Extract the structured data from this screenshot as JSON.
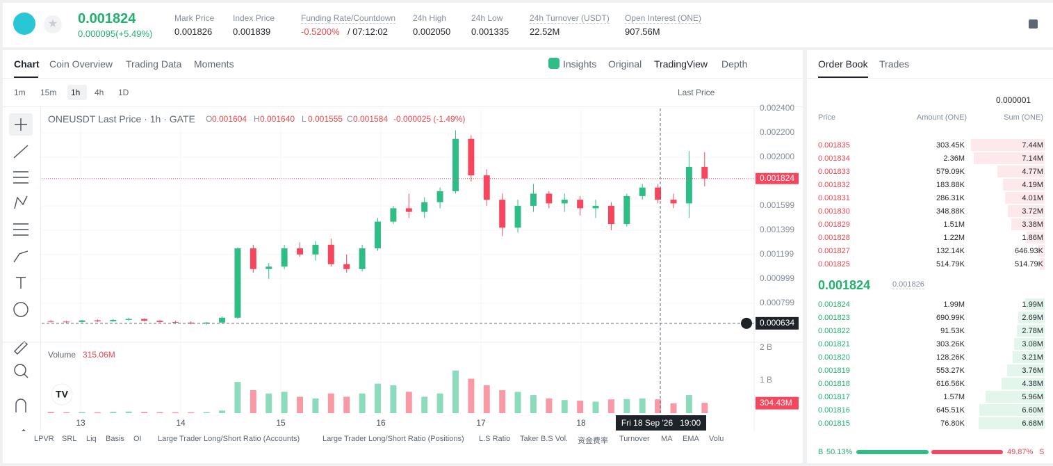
{
  "header": {
    "price": "0.001824",
    "change": "0.000095(+5.49%)",
    "stats": [
      {
        "label": "Mark Price",
        "value": "0.001826"
      },
      {
        "label": "Index Price",
        "value": "0.001839"
      },
      {
        "label": "Funding Rate/Countdown",
        "value": "-0.5200%",
        "value2": "/ 07:12:02",
        "value_color": "#ef454a"
      },
      {
        "label": "24h High",
        "value": "0.002050"
      },
      {
        "label": "24h Low",
        "value": "0.001335"
      },
      {
        "label": "24h Turnover (USDT)",
        "value": "22.52M"
      },
      {
        "label": "Open Interest (ONE)",
        "value": "907.56M"
      }
    ]
  },
  "tabs": [
    "Chart",
    "Coin Overview",
    "Trading Data",
    "Moments"
  ],
  "view_tabs": [
    "Insights",
    "Original",
    "TradingView",
    "Depth"
  ],
  "intervals": [
    "1m",
    "15m",
    "1h",
    "4h",
    "1D"
  ],
  "price_source": "Last Price",
  "legend": {
    "symbol": "ONEUSDT Last Price · 1h · GATE",
    "ohlc": [
      {
        "key": "O",
        "value": "0.001604"
      },
      {
        "key": "H",
        "value": "0.001640"
      },
      {
        "key": "L",
        "value": "0.001555"
      },
      {
        "key": "C",
        "value": "0.001584"
      }
    ],
    "change": "-0.000025 (-1.49%)",
    "volume_title": "Volume",
    "volume_value": "315.06M"
  },
  "chart_data": {
    "type": "candlestick",
    "categories": [
      null,
      null,
      null,
      null,
      null,
      null,
      null,
      null,
      null,
      null,
      null,
      null,
      null,
      null,
      null,
      null,
      null,
      null,
      null,
      null,
      null,
      null,
      null,
      null,
      null,
      null,
      null,
      null,
      null,
      null,
      null,
      null,
      null,
      null,
      null,
      null,
      null,
      null,
      null,
      null,
      null,
      null,
      null
    ],
    "open": [
      0.000652,
      0.000648,
      0.000645,
      0.000658,
      0.00065,
      0.000662,
      0.00067,
      0.000655,
      0.000645,
      0.00064,
      0.000632,
      0.00064,
      0.00068,
      0.00125,
      0.00108,
      0.0011,
      0.00125,
      0.0012,
      0.00128,
      0.00112,
      0.00108,
      0.00125,
      0.00147,
      0.00158,
      0.00155,
      0.00163,
      0.00172,
      0.00215,
      0.00185,
      0.00165,
      0.00142,
      0.0016,
      0.0017,
      0.00162,
      0.00165,
      0.00158,
      0.0016,
      0.00145,
      0.00168,
      0.00175,
      0.00165,
      0.00162,
      0.00192
    ],
    "high": [
      0.00066,
      0.000655,
      0.000662,
      0.000665,
      0.000668,
      0.00068,
      0.000675,
      0.00066,
      0.000655,
      0.00065,
      0.000645,
      0.00069,
      0.00126,
      0.00128,
      0.00113,
      0.00128,
      0.0013,
      0.00131,
      0.00133,
      0.0012,
      0.00128,
      0.0015,
      0.0016,
      0.0017,
      0.00167,
      0.00175,
      0.00222,
      0.00218,
      0.0019,
      0.0017,
      0.00165,
      0.00178,
      0.00172,
      0.0017,
      0.00168,
      0.00165,
      0.00163,
      0.0017,
      0.00178,
      0.00178,
      0.0017,
      0.00205,
      0.00204
    ],
    "low": [
      0.00064,
      0.000638,
      0.00064,
      0.000645,
      0.000648,
      0.000655,
      0.00065,
      0.00064,
      0.00063,
      0.000625,
      0.000622,
      0.000635,
      0.00067,
      0.00105,
      0.001,
      0.00108,
      0.00118,
      0.00115,
      0.0011,
      0.00105,
      0.00106,
      0.00123,
      0.00145,
      0.0015,
      0.0015,
      0.00158,
      0.0017,
      0.0018,
      0.0016,
      0.00135,
      0.00138,
      0.00155,
      0.00158,
      0.00155,
      0.00152,
      0.0015,
      0.0014,
      0.00143,
      0.00165,
      0.00162,
      0.00158,
      0.0015,
      0.00176
    ],
    "close": [
      0.000648,
      0.000645,
      0.000658,
      0.00065,
      0.000662,
      0.00067,
      0.000655,
      0.000645,
      0.00064,
      0.000632,
      0.00064,
      0.00068,
      0.00125,
      0.00108,
      0.0011,
      0.00125,
      0.0012,
      0.00128,
      0.00112,
      0.00108,
      0.00125,
      0.00147,
      0.00158,
      0.00155,
      0.00163,
      0.00172,
      0.00215,
      0.00185,
      0.00165,
      0.00142,
      0.0016,
      0.0017,
      0.00162,
      0.00165,
      0.00158,
      0.0016,
      0.00145,
      0.00168,
      0.00175,
      0.00165,
      0.00162,
      0.00192,
      0.001824
    ],
    "volume": [
      40000000,
      30000000,
      35000000,
      30000000,
      45000000,
      50000000,
      40000000,
      35000000,
      30000000,
      30000000,
      35000000,
      80000000,
      950000000,
      700000000,
      600000000,
      650000000,
      500000000,
      450000000,
      600000000,
      500000000,
      600000000,
      900000000,
      850000000,
      650000000,
      500000000,
      600000000,
      1300000000,
      1050000000,
      850000000,
      700000000,
      650000000,
      550000000,
      450000000,
      400000000,
      380000000,
      350000000,
      420000000,
      430000000,
      450000000,
      420000000,
      300000000,
      550000000,
      315060000
    ],
    "up_color": "#2ebd85",
    "down_color": "#f6465d",
    "ylim": [
      0.00049,
      0.0024
    ],
    "yticks": [
      {
        "value": 0.0024,
        "label": "0.002400"
      },
      {
        "value": 0.0022,
        "label": "0.002200"
      },
      {
        "value": 0.002,
        "label": "0.002000"
      },
      0.001599,
      0.001399,
      0.001199,
      0.000999,
      0.000799
    ],
    "volume_ylim": [
      0,
      2100000000
    ],
    "volume_yticks": [
      {
        "value": 2000000000,
        "label": "2 B"
      },
      {
        "value": 1000000000,
        "label": "1 B"
      }
    ],
    "x_labels": [
      "13",
      "14",
      "15",
      "16",
      "17",
      "18"
    ],
    "last_price": 0.001824,
    "crosshair_price": 0.000634,
    "crosshair_volume": {
      "value": 304430000,
      "label": "304.43M"
    },
    "crosshair_time": "Fri 18 Sep '26   19:00",
    "grid": true
  },
  "indicators": [
    "LPVR",
    "SRL",
    "Liq",
    "Basis",
    "OI",
    "Large Trader Long/Short Ratio (Accounts)",
    "Large Trader Long/Short Ratio (Positions)",
    "L.S Ratio",
    "Taker B.S Vol.",
    "资金费率",
    "Turnover",
    "MA",
    "EMA",
    "Volu"
  ],
  "order_book": {
    "tabs": [
      "Order Book",
      "Trades"
    ],
    "precision": "0.000001",
    "headers": [
      "Price",
      "Amount (ONE)",
      "Sum (ONE)"
    ],
    "asks": [
      {
        "price": "0.001835",
        "amount": "303.45K",
        "sum": {
          "value": 7440000,
          "label": "7.44M"
        }
      },
      {
        "price": "0.001834",
        "amount": "2.36M",
        "sum": {
          "value": 7140000,
          "label": "7.14M"
        }
      },
      {
        "price": "0.001833",
        "amount": "579.09K",
        "sum": {
          "value": 4770000,
          "label": "4.77M"
        }
      },
      {
        "price": "0.001832",
        "amount": "183.88K",
        "sum": {
          "value": 4190000,
          "label": "4.19M"
        }
      },
      {
        "price": "0.001831",
        "amount": "286.31K",
        "sum": {
          "value": 4010000,
          "label": "4.01M"
        }
      },
      {
        "price": "0.001830",
        "amount": "348.88K",
        "sum": {
          "value": 3720000,
          "label": "3.72M"
        }
      },
      {
        "price": "0.001829",
        "amount": "1.51M",
        "sum": {
          "value": 3380000,
          "label": "3.38M"
        }
      },
      {
        "price": "0.001828",
        "amount": "1.22M",
        "sum": {
          "value": 1860000,
          "label": "1.86M"
        }
      },
      {
        "price": "0.001827",
        "amount": "132.14K",
        "sum": {
          "value": 646930,
          "label": "646.93K"
        }
      },
      {
        "price": "0.001825",
        "amount": "514.79K",
        "sum": {
          "value": 514790,
          "label": "514.79K"
        }
      }
    ],
    "last_price": "0.001824",
    "mark_price": "0.001826",
    "bids": [
      {
        "price": "0.001824",
        "amount": "1.99M",
        "sum": {
          "value": 1990000,
          "label": "1.99M"
        }
      },
      {
        "price": "0.001823",
        "amount": "690.99K",
        "sum": {
          "value": 2690000,
          "label": "2.69M"
        }
      },
      {
        "price": "0.001822",
        "amount": "91.53K",
        "sum": {
          "value": 2780000,
          "label": "2.78M"
        }
      },
      {
        "price": "0.001821",
        "amount": "303.26K",
        "sum": {
          "value": 3080000,
          "label": "3.08M"
        }
      },
      {
        "price": "0.001820",
        "amount": "128.26K",
        "sum": {
          "value": 3210000,
          "label": "3.21M"
        }
      },
      {
        "price": "0.001819",
        "amount": "553.27K",
        "sum": {
          "value": 3760000,
          "label": "3.76M"
        }
      },
      {
        "price": "0.001818",
        "amount": "616.56K",
        "sum": {
          "value": 4380000,
          "label": "4.38M"
        }
      },
      {
        "price": "0.001817",
        "amount": "1.57M",
        "sum": {
          "value": 5960000,
          "label": "5.96M"
        }
      },
      {
        "price": "0.001816",
        "amount": "645.51K",
        "sum": {
          "value": 6600000,
          "label": "6.60M"
        }
      },
      {
        "price": "0.001815",
        "amount": "76.80K",
        "sum": {
          "value": 6680000,
          "label": "6.68M"
        }
      }
    ],
    "buy_label": "B",
    "buy_ratio": {
      "value": 50.13,
      "label": "50.13%"
    },
    "sell_ratio": {
      "value": 49.87,
      "label": "49.87%"
    },
    "sell_label": "S"
  }
}
